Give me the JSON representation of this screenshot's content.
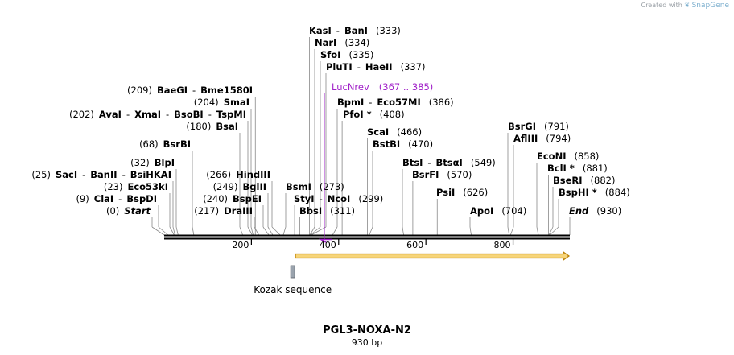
{
  "credit": {
    "prefix": "Created with",
    "brand": "SnapGene"
  },
  "plasmid": {
    "name": "PGL3-NOXA-N2",
    "length_text": "930 bp",
    "length_bp": 930
  },
  "axis": {
    "ticks": [
      {
        "bp": 200,
        "label": "200"
      },
      {
        "bp": 400,
        "label": "400"
      },
      {
        "bp": 600,
        "label": "600"
      },
      {
        "bp": 800,
        "label": "800"
      }
    ]
  },
  "colors": {
    "primer": "#a020c8",
    "arrow_fill": "#f7d57a",
    "arrow_edge": "#b97e00",
    "feature_box": "#9aa3ad",
    "line": "#000000",
    "leader": "#888888"
  },
  "sites": [
    {
      "id": "kasi",
      "parts": [
        "KasI",
        "BanI"
      ],
      "pos": "(333)",
      "pos_side": "right",
      "bp": 333
    },
    {
      "id": "nari",
      "parts": [
        "NarI"
      ],
      "pos": "(334)",
      "pos_side": "right",
      "bp": 334
    },
    {
      "id": "sfoi",
      "parts": [
        "SfoI"
      ],
      "pos": "(335)",
      "pos_side": "right",
      "bp": 335
    },
    {
      "id": "pluti",
      "parts": [
        "PluTI",
        "HaeII"
      ],
      "pos": "(337)",
      "pos_side": "right",
      "bp": 337
    },
    {
      "id": "bpmi",
      "parts": [
        "BpmI",
        "Eco57MI"
      ],
      "pos": "(386)",
      "pos_side": "right",
      "bp": 386
    },
    {
      "id": "pfoi",
      "parts": [
        "PfoI *"
      ],
      "pos": "(408)",
      "pos_side": "right",
      "bp": 408
    },
    {
      "id": "baegi",
      "parts": [
        "BaeGI",
        "Bme1580I"
      ],
      "pos": "(209)",
      "pos_side": "left",
      "bp": 209
    },
    {
      "id": "smai",
      "parts": [
        "SmaI"
      ],
      "pos": "(204)",
      "pos_side": "left",
      "bp": 204
    },
    {
      "id": "avai",
      "parts": [
        "AvaI",
        "XmaI",
        "BsoBI",
        "TspMI"
      ],
      "pos": "(202)",
      "pos_side": "left",
      "bp": 202
    },
    {
      "id": "bsai",
      "parts": [
        "BsaI"
      ],
      "pos": "(180)",
      "pos_side": "left",
      "bp": 180
    },
    {
      "id": "bsrbi",
      "parts": [
        "BsrBI"
      ],
      "pos": "(68)",
      "pos_side": "left",
      "bp": 68
    },
    {
      "id": "blpi",
      "parts": [
        "BlpI"
      ],
      "pos": "(32)",
      "pos_side": "left",
      "bp": 32
    },
    {
      "id": "saci",
      "parts": [
        "SacI",
        "BanII",
        "BsiHKAI"
      ],
      "pos": "(25)",
      "pos_side": "left",
      "bp": 25
    },
    {
      "id": "eco53ki",
      "parts": [
        "Eco53kI"
      ],
      "pos": "(23)",
      "pos_side": "left",
      "bp": 23
    },
    {
      "id": "clai",
      "parts": [
        "ClaI",
        "BspDI"
      ],
      "pos": "(9)",
      "pos_side": "left",
      "bp": 9
    },
    {
      "id": "start",
      "parts": [
        "Start"
      ],
      "pos": "(0)",
      "pos_side": "left",
      "bp": 0,
      "italic": true
    },
    {
      "id": "hindiii",
      "parts": [
        "HindIII"
      ],
      "pos": "(266)",
      "pos_side": "left",
      "bp": 266
    },
    {
      "id": "bglii",
      "parts": [
        "BglII"
      ],
      "pos": "(249)",
      "pos_side": "left",
      "bp": 249
    },
    {
      "id": "bspei",
      "parts": [
        "BspEI"
      ],
      "pos": "(240)",
      "pos_side": "left",
      "bp": 240
    },
    {
      "id": "draiii",
      "parts": [
        "DraIII"
      ],
      "pos": "(217)",
      "pos_side": "left",
      "bp": 217
    },
    {
      "id": "bsmi",
      "parts": [
        "BsmI"
      ],
      "pos": "(273)",
      "pos_side": "right",
      "bp": 273
    },
    {
      "id": "styi",
      "parts": [
        "StyI",
        "NcoI"
      ],
      "pos": "(299)",
      "pos_side": "right",
      "bp": 299
    },
    {
      "id": "bbsi",
      "parts": [
        "BbsI"
      ],
      "pos": "(311)",
      "pos_side": "right",
      "bp": 311
    },
    {
      "id": "scai",
      "parts": [
        "ScaI"
      ],
      "pos": "(466)",
      "pos_side": "right",
      "bp": 466
    },
    {
      "id": "bstbi",
      "parts": [
        "BstBI"
      ],
      "pos": "(470)",
      "pos_side": "right",
      "bp": 470
    },
    {
      "id": "btsi",
      "parts": [
        "BtsI",
        "BtsαI"
      ],
      "pos": "(549)",
      "pos_side": "right",
      "bp": 549
    },
    {
      "id": "bsrfi",
      "parts": [
        "BsrFI"
      ],
      "pos": "(570)",
      "pos_side": "right",
      "bp": 570
    },
    {
      "id": "psii",
      "parts": [
        "PsiI"
      ],
      "pos": "(626)",
      "pos_side": "right",
      "bp": 626
    },
    {
      "id": "apoi",
      "parts": [
        "ApoI"
      ],
      "pos": "(704)",
      "pos_side": "right",
      "bp": 704
    },
    {
      "id": "bsrgi",
      "parts": [
        "BsrGI"
      ],
      "pos": "(791)",
      "pos_side": "right",
      "bp": 791
    },
    {
      "id": "afliii",
      "parts": [
        "AflIII"
      ],
      "pos": "(794)",
      "pos_side": "right",
      "bp": 794
    },
    {
      "id": "econi",
      "parts": [
        "EcoNI"
      ],
      "pos": "(858)",
      "pos_side": "right",
      "bp": 858
    },
    {
      "id": "bcli",
      "parts": [
        "BclI *"
      ],
      "pos": "(881)",
      "pos_side": "right",
      "bp": 881
    },
    {
      "id": "bseri",
      "parts": [
        "BseRI"
      ],
      "pos": "(882)",
      "pos_side": "right",
      "bp": 882
    },
    {
      "id": "bsphi",
      "parts": [
        "BspHI *"
      ],
      "pos": "(884)",
      "pos_side": "right",
      "bp": 884
    },
    {
      "id": "end",
      "parts": [
        "End"
      ],
      "pos": "(930)",
      "pos_side": "right",
      "bp": 930,
      "italic": true
    }
  ],
  "primer": {
    "name": "LucNrev",
    "range": "(367 .. 385)",
    "start_bp": 367,
    "end_bp": 385
  },
  "features": [
    {
      "id": "kozak",
      "label": "Kozak sequence",
      "start_bp": 290,
      "end_bp": 299
    }
  ],
  "orf": {
    "start_bp": 299,
    "end_bp": 930
  }
}
